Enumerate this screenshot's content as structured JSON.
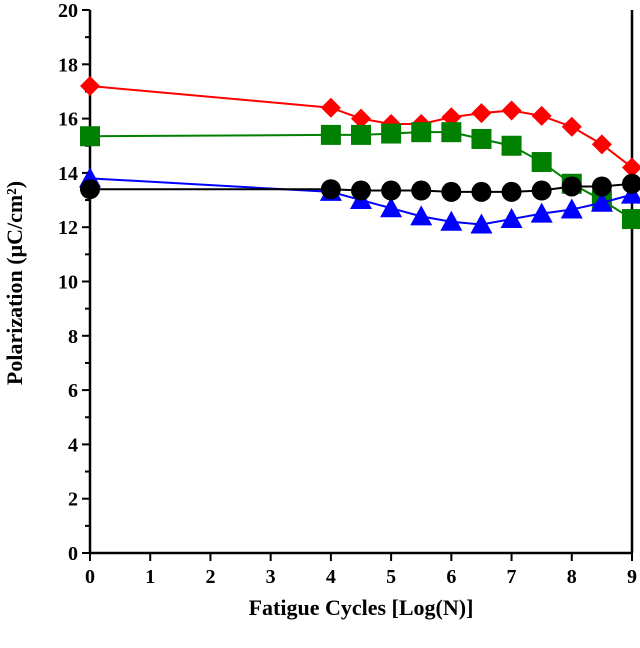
{
  "chart_data": {
    "type": "line",
    "title": "",
    "xlabel": "Fatigue Cycles [Log(N)]",
    "ylabel": "Polarization (μC/cm²)",
    "xlim": [
      0,
      9
    ],
    "ylim": [
      0,
      20
    ],
    "xticks": [
      "0",
      "1",
      "2",
      "3",
      "4",
      "5",
      "6",
      "7",
      "8",
      "9"
    ],
    "yticks": [
      "0",
      "2",
      "4",
      "6",
      "8",
      "10",
      "12",
      "14",
      "16",
      "18",
      "20"
    ],
    "grid": false,
    "x": [
      0,
      4,
      4.5,
      5,
      5.5,
      6,
      6.5,
      7,
      7.5,
      8,
      8.5,
      9
    ],
    "series": [
      {
        "marker": "diamond",
        "color": "#ff0000",
        "values": [
          17.2,
          16.4,
          16.0,
          15.8,
          15.8,
          16.05,
          16.2,
          16.3,
          16.1,
          15.7,
          15.05,
          14.2
        ]
      },
      {
        "marker": "square",
        "color": "#008000",
        "values": [
          15.35,
          15.4,
          15.4,
          15.45,
          15.5,
          15.5,
          15.25,
          15.0,
          14.4,
          13.6,
          13.0,
          12.3
        ]
      },
      {
        "marker": "triangle",
        "color": "#0000ff",
        "values": [
          13.8,
          13.3,
          13.0,
          12.7,
          12.4,
          12.2,
          12.1,
          12.3,
          12.5,
          12.65,
          12.9,
          13.2
        ]
      },
      {
        "marker": "circle",
        "color": "#000000",
        "values": [
          13.4,
          13.4,
          13.35,
          13.35,
          13.35,
          13.3,
          13.3,
          13.3,
          13.35,
          13.5,
          13.5,
          13.6
        ]
      }
    ]
  }
}
